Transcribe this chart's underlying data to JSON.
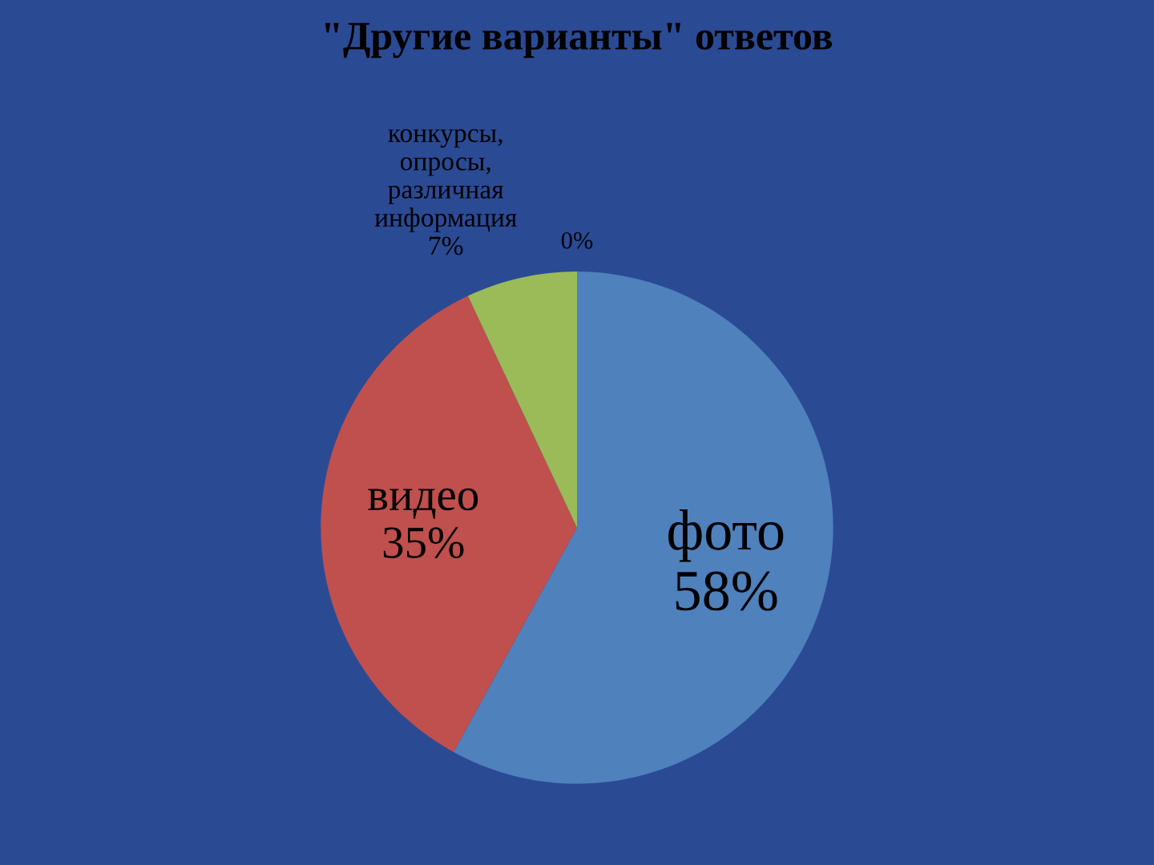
{
  "chart_data": {
    "type": "pie",
    "title": "\"Другие варианты\" ответов",
    "categories": [
      "фото",
      "видео",
      "конкурсы, опросы, различная информация",
      null
    ],
    "values": [
      58,
      35,
      7,
      0
    ],
    "colors": [
      "#4f81bd",
      "#c0504d",
      "#9bbb59",
      "#8064a2"
    ],
    "value_labels": [
      "58%",
      "35%",
      "7%",
      "0%"
    ]
  }
}
